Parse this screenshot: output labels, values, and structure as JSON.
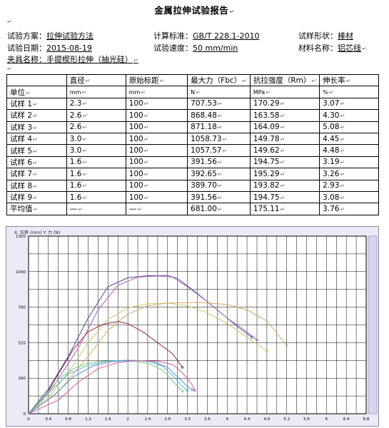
{
  "report": {
    "title": "金属拉伸试验报告",
    "para_mark": "↵"
  },
  "info": {
    "scheme_label": "试验方案：",
    "scheme_value": "拉伸试验方法",
    "standard_label": "计算标准：",
    "standard_value": "GB/T 228.1-2010",
    "shape_label": "试样形状：",
    "shape_value": "棒材",
    "date_label": "试验日期：",
    "date_value": "2015-08-19",
    "speed_label": "试验速度：",
    "speed_value": "50 mm/min",
    "material_label": "材料名称：",
    "material_value": "铝芯线",
    "fixture_label": "夹具名称：",
    "fixture_value": "手提楔形拉伸（抽光硅）"
  },
  "table": {
    "headers": [
      "",
      "直径",
      "原始标距",
      "最大力（Fbc）",
      "抗拉强度（Rm）",
      "伸长率"
    ],
    "units": [
      "单位",
      "mm",
      "mm",
      "N",
      "MPa",
      "%"
    ],
    "rows": [
      [
        "试样 1",
        "2.3",
        "100",
        "707.53",
        "170.29",
        "3.07"
      ],
      [
        "试样 2",
        "2.6",
        "100",
        "868.48",
        "163.58",
        "4.30"
      ],
      [
        "试样 3",
        "2.6",
        "100",
        "871.18",
        "164.09",
        "5.08"
      ],
      [
        "试样 4",
        "3.0",
        "100",
        "1058.73",
        "149.78",
        "4.45"
      ],
      [
        "试样 5",
        "3.0",
        "100",
        "1057.57",
        "149.62",
        "4.48"
      ],
      [
        "试样 6",
        "1.6",
        "100",
        "391.56",
        "194.75",
        "3.19"
      ],
      [
        "试样 7",
        "1.6",
        "100",
        "392.65",
        "195.29",
        "3.26"
      ],
      [
        "试样 8",
        "1.6",
        "100",
        "389.70",
        "193.82",
        "2.93"
      ],
      [
        "试样 9",
        "1.6",
        "100",
        "391.56",
        "194.75",
        "3.08"
      ]
    ],
    "average": [
      "平均值",
      "—",
      "—",
      "681.00",
      "175.11",
      "3.76"
    ]
  },
  "colors": {
    "grid": "#000000",
    "plot_bg": "#ffffff",
    "frame_bg": "#ebebf7",
    "scrollbar": "#d6d6ee"
  },
  "chart_data": {
    "type": "line",
    "title": "",
    "header_text": "X: 位移 (mm)   Y: 力 (N)",
    "xlabel": "",
    "ylabel": "",
    "xlim": [
      0,
      6.8
    ],
    "ylim": [
      0,
      1200
    ],
    "x_ticks": [
      "0",
      "0.4",
      "0.8",
      "1.2",
      "1.6",
      "2",
      "2.4",
      "2.8",
      "3.2",
      "3.6",
      "4",
      "4.4",
      "4.8",
      "5.2",
      "5.6",
      "6",
      "6.4",
      "6.8"
    ],
    "y_ticks": [
      "0",
      "260",
      "520",
      "780",
      "1040",
      "1300"
    ],
    "grid": true,
    "series": [
      {
        "color": "#4b4f9c",
        "points": [
          [
            0,
            0
          ],
          [
            0.4,
            180
          ],
          [
            0.8,
            420
          ],
          [
            1.2,
            700
          ],
          [
            1.6,
            930
          ],
          [
            2.0,
            995
          ],
          [
            2.4,
            1010
          ],
          [
            2.8,
            1012
          ],
          [
            3.0,
            990
          ],
          [
            3.4,
            880
          ],
          [
            3.8,
            760
          ],
          [
            4.2,
            640
          ],
          [
            4.5,
            560
          ]
        ]
      },
      {
        "color": "#b45fb4",
        "points": [
          [
            0,
            0
          ],
          [
            0.5,
            200
          ],
          [
            1.0,
            480
          ],
          [
            1.4,
            760
          ],
          [
            1.8,
            940
          ],
          [
            2.2,
            1000
          ],
          [
            2.6,
            1008
          ],
          [
            2.9,
            1000
          ],
          [
            3.2,
            930
          ],
          [
            3.6,
            820
          ],
          [
            4.0,
            700
          ],
          [
            4.4,
            600
          ],
          [
            4.6,
            540
          ]
        ]
      },
      {
        "color": "#c8c86e",
        "points": [
          [
            0,
            0
          ],
          [
            0.4,
            120
          ],
          [
            0.8,
            300
          ],
          [
            1.2,
            520
          ],
          [
            1.6,
            690
          ],
          [
            2.0,
            775
          ],
          [
            2.4,
            805
          ],
          [
            2.8,
            810
          ],
          [
            3.2,
            790
          ],
          [
            3.6,
            740
          ],
          [
            4.0,
            660
          ],
          [
            4.4,
            560
          ],
          [
            4.8,
            460
          ]
        ]
      },
      {
        "color": "#d7a86a",
        "points": [
          [
            0,
            0
          ],
          [
            0.6,
            160
          ],
          [
            1.2,
            420
          ],
          [
            1.6,
            610
          ],
          [
            2.0,
            730
          ],
          [
            2.4,
            790
          ],
          [
            2.8,
            810
          ],
          [
            3.4,
            815
          ],
          [
            4.0,
            800
          ],
          [
            4.4,
            760
          ],
          [
            4.8,
            680
          ],
          [
            5.2,
            500
          ]
        ]
      },
      {
        "color": "#8a2a3a",
        "points": [
          [
            0,
            0
          ],
          [
            0.3,
            110
          ],
          [
            0.6,
            290
          ],
          [
            0.9,
            470
          ],
          [
            1.2,
            600
          ],
          [
            1.5,
            655
          ],
          [
            1.8,
            675
          ],
          [
            2.0,
            660
          ],
          [
            2.3,
            600
          ],
          [
            2.6,
            520
          ],
          [
            2.9,
            440
          ],
          [
            3.1,
            340
          ]
        ]
      },
      {
        "color": "#7ec47e",
        "points": [
          [
            0,
            0
          ],
          [
            0.3,
            120
          ],
          [
            0.6,
            250
          ],
          [
            0.9,
            330
          ],
          [
            1.2,
            370
          ],
          [
            1.5,
            385
          ],
          [
            1.8,
            390
          ],
          [
            2.1,
            385
          ],
          [
            2.4,
            370
          ],
          [
            2.7,
            320
          ],
          [
            2.9,
            240
          ],
          [
            3.1,
            165
          ]
        ]
      },
      {
        "color": "#5ab6c8",
        "points": [
          [
            0,
            0
          ],
          [
            0.4,
            150
          ],
          [
            0.8,
            290
          ],
          [
            1.2,
            355
          ],
          [
            1.6,
            385
          ],
          [
            2.0,
            392
          ],
          [
            2.4,
            385
          ],
          [
            2.7,
            350
          ],
          [
            2.9,
            280
          ],
          [
            3.1,
            200
          ],
          [
            3.2,
            170
          ]
        ]
      },
      {
        "color": "#5b8ed0",
        "points": [
          [
            0,
            0
          ],
          [
            0.5,
            130
          ],
          [
            0.9,
            270
          ],
          [
            1.3,
            350
          ],
          [
            1.7,
            383
          ],
          [
            2.1,
            390
          ],
          [
            2.5,
            383
          ],
          [
            2.8,
            340
          ],
          [
            3.0,
            270
          ],
          [
            3.2,
            200
          ],
          [
            3.3,
            175
          ]
        ]
      },
      {
        "color": "#d060a0",
        "points": [
          [
            0,
            0
          ],
          [
            0.6,
            100
          ],
          [
            1.0,
            230
          ],
          [
            1.4,
            330
          ],
          [
            1.8,
            375
          ],
          [
            2.2,
            390
          ],
          [
            2.6,
            385
          ],
          [
            2.9,
            360
          ],
          [
            3.1,
            300
          ],
          [
            3.3,
            210
          ],
          [
            3.35,
            170
          ]
        ]
      }
    ]
  }
}
